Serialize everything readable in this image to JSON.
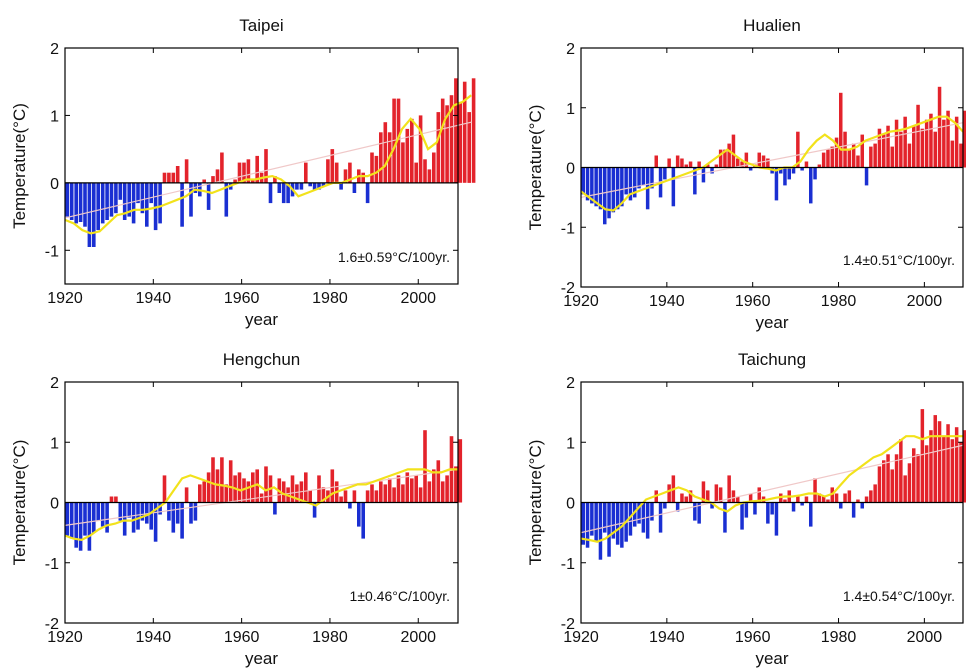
{
  "figure": {
    "colors": {
      "positive": "#e3232b",
      "negative": "#1a2fd2",
      "smooth": "#f2e21b",
      "trend": "#f0c8c8",
      "axis": "#000000",
      "background": "#ffffff"
    }
  },
  "chart_data": [
    {
      "type": "bar",
      "title": "Taipei",
      "xlabel": "year",
      "ylabel": "Temperature(°C)",
      "xlim": [
        1920,
        2009
      ],
      "ylim": [
        -1.5,
        2
      ],
      "xticks": [
        "1920",
        "1940",
        "1960",
        "1980",
        "2000"
      ],
      "yticks": [
        "-1",
        "0",
        "1",
        "2"
      ],
      "trend_label": "1.6±0.59°C/100yr.",
      "start_year": 1920,
      "values": [
        -0.5,
        -0.55,
        -0.6,
        -0.58,
        -0.65,
        -0.95,
        -0.95,
        -0.7,
        -0.6,
        -0.55,
        -0.5,
        -0.45,
        -0.25,
        -0.55,
        -0.5,
        -0.6,
        -0.3,
        -0.45,
        -0.65,
        -0.3,
        -0.7,
        -0.6,
        0.15,
        0.15,
        0.15,
        0.25,
        -0.65,
        0.35,
        -0.5,
        -0.15,
        -0.2,
        0.05,
        -0.4,
        0.1,
        0.2,
        0.45,
        -0.5,
        -0.1,
        0.05,
        0.3,
        0.3,
        0.35,
        0.05,
        0.4,
        0.15,
        0.5,
        -0.3,
        0.1,
        -0.15,
        -0.3,
        -0.3,
        -0.2,
        -0.1,
        -0.1,
        0.3,
        -0.05,
        -0.1,
        -0.1,
        -0.05,
        0.35,
        0.5,
        0.3,
        -0.1,
        0.2,
        0.3,
        -0.15,
        0.2,
        0.15,
        -0.3,
        0.45,
        0.4,
        0.75,
        0.9,
        0.75,
        1.25,
        1.25,
        0.6,
        0.8,
        0.95,
        0.3,
        1.0,
        0.35,
        0.2,
        0.45,
        1.05,
        1.25,
        1.15,
        1.3,
        1.55,
        1.2,
        1.5,
        1.05,
        1.55
      ],
      "smooth": [
        -0.55,
        -0.6,
        -0.7,
        -0.75,
        -0.72,
        -0.6,
        -0.48,
        -0.45,
        -0.4,
        -0.4,
        -0.38,
        -0.35,
        -0.3,
        -0.25,
        -0.2,
        -0.1,
        -0.12,
        -0.15,
        -0.1,
        -0.05,
        0.0,
        0.05,
        0.05,
        0.08,
        0.1,
        0.05,
        -0.05,
        -0.2,
        -0.15,
        -0.1,
        -0.05,
        0.0,
        0.0,
        0.05,
        0.1,
        0.1,
        0.15,
        0.25,
        0.5,
        0.8,
        0.95,
        0.8,
        0.5,
        0.6,
        0.95,
        1.15,
        1.2,
        1.3
      ],
      "trend_start": -0.52,
      "trend_end": 0.9
    },
    {
      "type": "bar",
      "title": "Hualien",
      "xlabel": "year",
      "ylabel": "Temperature(°C)",
      "xlim": [
        1920,
        2009
      ],
      "ylim": [
        -2,
        2
      ],
      "xticks": [
        "1920",
        "1940",
        "1960",
        "1980",
        "2000"
      ],
      "yticks": [
        "-2",
        "-1",
        "0",
        "1",
        "2"
      ],
      "trend_label": "1.4±0.51°C/100yr.",
      "start_year": 1920,
      "values": [
        -0.45,
        -0.55,
        -0.6,
        -0.65,
        -0.7,
        -0.95,
        -0.85,
        -0.75,
        -0.7,
        -0.65,
        -0.45,
        -0.55,
        -0.5,
        -0.35,
        -0.3,
        -0.7,
        -0.35,
        0.2,
        -0.5,
        -0.2,
        0.15,
        -0.65,
        0.2,
        0.15,
        0.05,
        0.1,
        -0.45,
        0.1,
        -0.25,
        0.05,
        -0.1,
        0.05,
        0.3,
        0.3,
        0.4,
        0.55,
        0.15,
        0.1,
        0.25,
        -0.05,
        0.05,
        0.25,
        0.2,
        0.15,
        -0.1,
        -0.55,
        -0.1,
        -0.3,
        -0.2,
        -0.1,
        0.6,
        -0.05,
        0.1,
        -0.6,
        -0.2,
        0.05,
        0.25,
        0.3,
        0.35,
        0.5,
        1.25,
        0.6,
        0.3,
        0.4,
        0.2,
        0.55,
        -0.3,
        0.35,
        0.4,
        0.65,
        0.55,
        0.7,
        0.35,
        0.8,
        0.6,
        0.85,
        0.4,
        0.7,
        1.05,
        0.65,
        0.8,
        0.9,
        0.6,
        1.35,
        0.8,
        0.95,
        0.45,
        0.85,
        0.4,
        0.95
      ],
      "smooth": [
        -0.4,
        -0.5,
        -0.6,
        -0.7,
        -0.72,
        -0.6,
        -0.45,
        -0.4,
        -0.35,
        -0.3,
        -0.25,
        -0.2,
        -0.15,
        -0.1,
        -0.05,
        0.0,
        0.1,
        0.2,
        0.3,
        0.2,
        0.1,
        0.05,
        0.0,
        -0.02,
        -0.05,
        0.0,
        0.0,
        0.1,
        0.3,
        0.45,
        0.55,
        0.45,
        0.3,
        0.3,
        0.35,
        0.45,
        0.5,
        0.55,
        0.6,
        0.62,
        0.65,
        0.7,
        0.75,
        0.8,
        0.85,
        0.85,
        0.75,
        0.6
      ],
      "trend_start": -0.5,
      "trend_end": 0.75
    },
    {
      "type": "bar",
      "title": "Hengchun",
      "xlabel": "year",
      "ylabel": "Temperature(°C)",
      "xlim": [
        1920,
        2009
      ],
      "ylim": [
        -2,
        2
      ],
      "xticks": [
        "1920",
        "1940",
        "1960",
        "1980",
        "2000"
      ],
      "yticks": [
        "-2",
        "-1",
        "0",
        "1",
        "2"
      ],
      "trend_label": "1±0.46°C/100yr.",
      "start_year": 1920,
      "values": [
        -0.55,
        -0.6,
        -0.75,
        -0.8,
        -0.55,
        -0.8,
        -0.5,
        -0.3,
        -0.4,
        -0.5,
        0.1,
        0.1,
        -0.3,
        -0.55,
        -0.25,
        -0.5,
        -0.45,
        -0.3,
        -0.35,
        -0.45,
        -0.65,
        -0.2,
        0.45,
        -0.3,
        -0.5,
        -0.35,
        -0.6,
        0.25,
        -0.35,
        -0.3,
        0.3,
        0.35,
        0.5,
        0.75,
        0.55,
        0.75,
        0.3,
        0.7,
        0.45,
        0.5,
        0.4,
        0.35,
        0.5,
        0.55,
        0.15,
        0.6,
        0.45,
        -0.2,
        0.4,
        0.35,
        0.25,
        0.45,
        0.3,
        0.35,
        0.5,
        0.2,
        -0.25,
        0.45,
        0.25,
        0.2,
        0.55,
        0.35,
        0.1,
        0.2,
        -0.1,
        0.2,
        -0.4,
        -0.6,
        0.2,
        0.3,
        0.2,
        0.35,
        0.3,
        0.4,
        0.25,
        0.45,
        0.3,
        0.5,
        0.4,
        0.45,
        0.25,
        1.2,
        0.35,
        0.55,
        0.7,
        0.35,
        0.45,
        1.1,
        0.6,
        1.05
      ],
      "smooth": [
        -0.55,
        -0.6,
        -0.62,
        -0.55,
        -0.45,
        -0.38,
        -0.35,
        -0.3,
        -0.3,
        -0.25,
        -0.2,
        -0.1,
        0.0,
        0.2,
        0.4,
        0.45,
        0.4,
        0.35,
        0.3,
        0.28,
        0.25,
        0.2,
        0.25,
        0.3,
        0.2,
        0.25,
        0.15,
        0.1,
        0.05,
        0.0,
        -0.05,
        0.05,
        0.15,
        0.2,
        0.25,
        0.3,
        0.3,
        0.35,
        0.4,
        0.45,
        0.5,
        0.55,
        0.55,
        0.55,
        0.5,
        0.5,
        0.55,
        0.55
      ],
      "trend_start": -0.38,
      "trend_end": 0.55
    },
    {
      "type": "bar",
      "title": "Taichung",
      "xlabel": "year",
      "ylabel": "Temperature(°C)",
      "xlim": [
        1920,
        2009
      ],
      "ylim": [
        -2,
        2
      ],
      "xticks": [
        "1920",
        "1940",
        "1960",
        "1980",
        "2000"
      ],
      "yticks": [
        "-2",
        "-1",
        "0",
        "1",
        "2"
      ],
      "trend_label": "1.4±0.54°C/100yr.",
      "start_year": 1920,
      "values": [
        -0.7,
        -0.75,
        -0.55,
        -0.65,
        -0.95,
        -0.5,
        -0.9,
        -0.6,
        -0.7,
        -0.75,
        -0.65,
        -0.55,
        -0.4,
        -0.35,
        -0.5,
        -0.6,
        -0.3,
        0.2,
        -0.5,
        -0.1,
        0.3,
        0.45,
        -0.15,
        0.15,
        0.1,
        0.2,
        -0.3,
        -0.35,
        0.35,
        0.2,
        -0.1,
        0.3,
        0.25,
        -0.5,
        0.45,
        0.2,
        0.1,
        -0.45,
        -0.25,
        0.15,
        -0.2,
        0.25,
        0.1,
        -0.35,
        -0.2,
        -0.55,
        0.15,
        0.05,
        0.2,
        -0.15,
        0.1,
        -0.05,
        0.1,
        -0.4,
        0.4,
        0.15,
        0.1,
        0.05,
        0.25,
        0.15,
        -0.1,
        0.15,
        0.2,
        -0.25,
        0.05,
        -0.1,
        0.1,
        0.2,
        0.3,
        0.6,
        0.7,
        0.8,
        0.55,
        0.8,
        1.05,
        0.45,
        0.65,
        0.9,
        0.8,
        1.55,
        0.95,
        1.2,
        1.45,
        1.35,
        1.1,
        1.3,
        1.05,
        1.25,
        1.0,
        1.2
      ],
      "smooth": [
        -0.6,
        -0.62,
        -0.65,
        -0.6,
        -0.5,
        -0.4,
        -0.25,
        -0.1,
        0.05,
        0.1,
        0.15,
        0.2,
        0.25,
        0.2,
        0.1,
        0.05,
        0.0,
        -0.1,
        -0.15,
        -0.05,
        0.0,
        0.02,
        0.03,
        0.05,
        0.08,
        0.1,
        0.1,
        0.12,
        0.15,
        0.15,
        0.1,
        0.15,
        0.3,
        0.45,
        0.55,
        0.65,
        0.75,
        0.8,
        0.9,
        1.0,
        1.1,
        1.1,
        1.05,
        1.1,
        1.1,
        1.1,
        1.1,
        1.1
      ],
      "trend_start": -0.5,
      "trend_end": 0.95
    }
  ]
}
